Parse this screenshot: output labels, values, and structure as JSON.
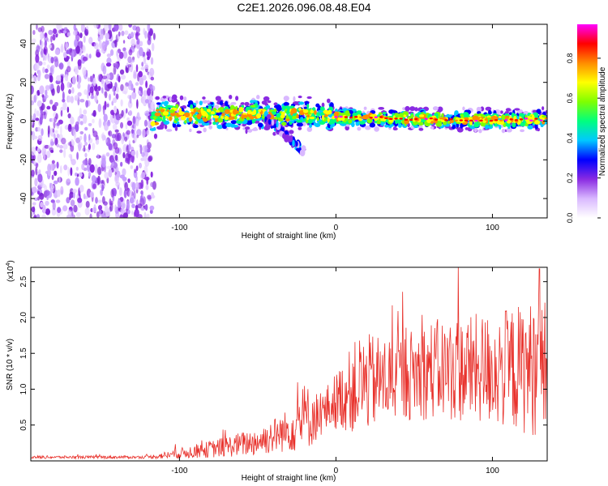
{
  "title": "C2E1.2026.096.08.48.E04",
  "chart_data": [
    {
      "type": "heatmap",
      "name": "spectrogram",
      "xlabel": "Height of straight line (km)",
      "ylabel": "Frequency (Hz)",
      "xlim": [
        -195,
        135
      ],
      "ylim": [
        -50,
        50
      ],
      "xticks": [
        -100,
        0,
        100
      ],
      "xtick_labels": [
        "-100",
        "0",
        "100"
      ],
      "yticks": [
        -40,
        -20,
        0,
        20,
        40
      ],
      "ytick_labels": [
        "-40",
        "-20",
        "0",
        "20",
        "40"
      ],
      "noise_region_km": [
        -195,
        -116
      ],
      "signal_band": {
        "x_start": -117,
        "x_end": 135,
        "center_hz": [
          {
            "x": -115,
            "f": 4
          },
          {
            "x": -80,
            "f": 3
          },
          {
            "x": -50,
            "f": 4
          },
          {
            "x": -40,
            "f": 2
          },
          {
            "x": -30,
            "f": 3
          },
          {
            "x": -20,
            "f": 4
          },
          {
            "x": 0,
            "f": 2
          },
          {
            "x": 30,
            "f": 1.5
          },
          {
            "x": 60,
            "f": 1
          },
          {
            "x": 100,
            "f": 0.5
          },
          {
            "x": 135,
            "f": 1
          }
        ],
        "peak_amplitude": 0.98
      },
      "side_branch": {
        "x_range": [
          -45,
          -20
        ],
        "f_range": [
          2,
          -16
        ]
      },
      "colorbar": {
        "label": "Normalized spectral amplitude",
        "range": [
          0,
          0.97
        ],
        "ticks": [
          0.0,
          0.2,
          0.4,
          0.6,
          0.8
        ],
        "tick_labels": [
          "0.0",
          "0.2",
          "0.4",
          "0.6",
          "0.8"
        ],
        "colors": [
          "#ffffff",
          "#d9b8ff",
          "#8a2be2",
          "#0000ff",
          "#00c8ff",
          "#00ff7f",
          "#7fff00",
          "#ffff00",
          "#ff8c00",
          "#ff0000",
          "#ff00ff"
        ]
      }
    },
    {
      "type": "line",
      "name": "snr",
      "xlabel": "Height of straight line (km)",
      "ylabel": "SNR (10 * v/v)",
      "multiplier_label": "(x10",
      "multiplier_exp": "4",
      "multiplier_close": ")",
      "xlim": [
        -195,
        135
      ],
      "ylim": [
        0,
        2.7
      ],
      "xticks": [
        -100,
        0,
        100
      ],
      "xtick_labels": [
        "-100",
        "0",
        "100"
      ],
      "yticks": [
        0.5,
        1.0,
        1.5,
        2.0,
        2.5
      ],
      "ytick_labels": [
        "0.5",
        "1.0",
        "1.5",
        "2.0",
        "2.5"
      ],
      "series_color": "#e8302a",
      "envelope": [
        {
          "x": -195,
          "base": 0.05,
          "spread": 0.02
        },
        {
          "x": -120,
          "base": 0.05,
          "spread": 0.02
        },
        {
          "x": -110,
          "base": 0.07,
          "spread": 0.05
        },
        {
          "x": -80,
          "base": 0.15,
          "spread": 0.12
        },
        {
          "x": -50,
          "base": 0.25,
          "spread": 0.2
        },
        {
          "x": -30,
          "base": 0.4,
          "spread": 0.3
        },
        {
          "x": -20,
          "base": 0.55,
          "spread": 0.5
        },
        {
          "x": -10,
          "base": 0.6,
          "spread": 0.3
        },
        {
          "x": 0,
          "base": 0.8,
          "spread": 0.4
        },
        {
          "x": 15,
          "base": 1.0,
          "spread": 0.7
        },
        {
          "x": 40,
          "base": 1.1,
          "spread": 0.6
        },
        {
          "x": 60,
          "base": 1.2,
          "spread": 0.7
        },
        {
          "x": 100,
          "base": 1.2,
          "spread": 0.8
        },
        {
          "x": 135,
          "base": 1.2,
          "spread": 1.0
        }
      ],
      "max_value": 2.68,
      "max_x": 130
    }
  ]
}
